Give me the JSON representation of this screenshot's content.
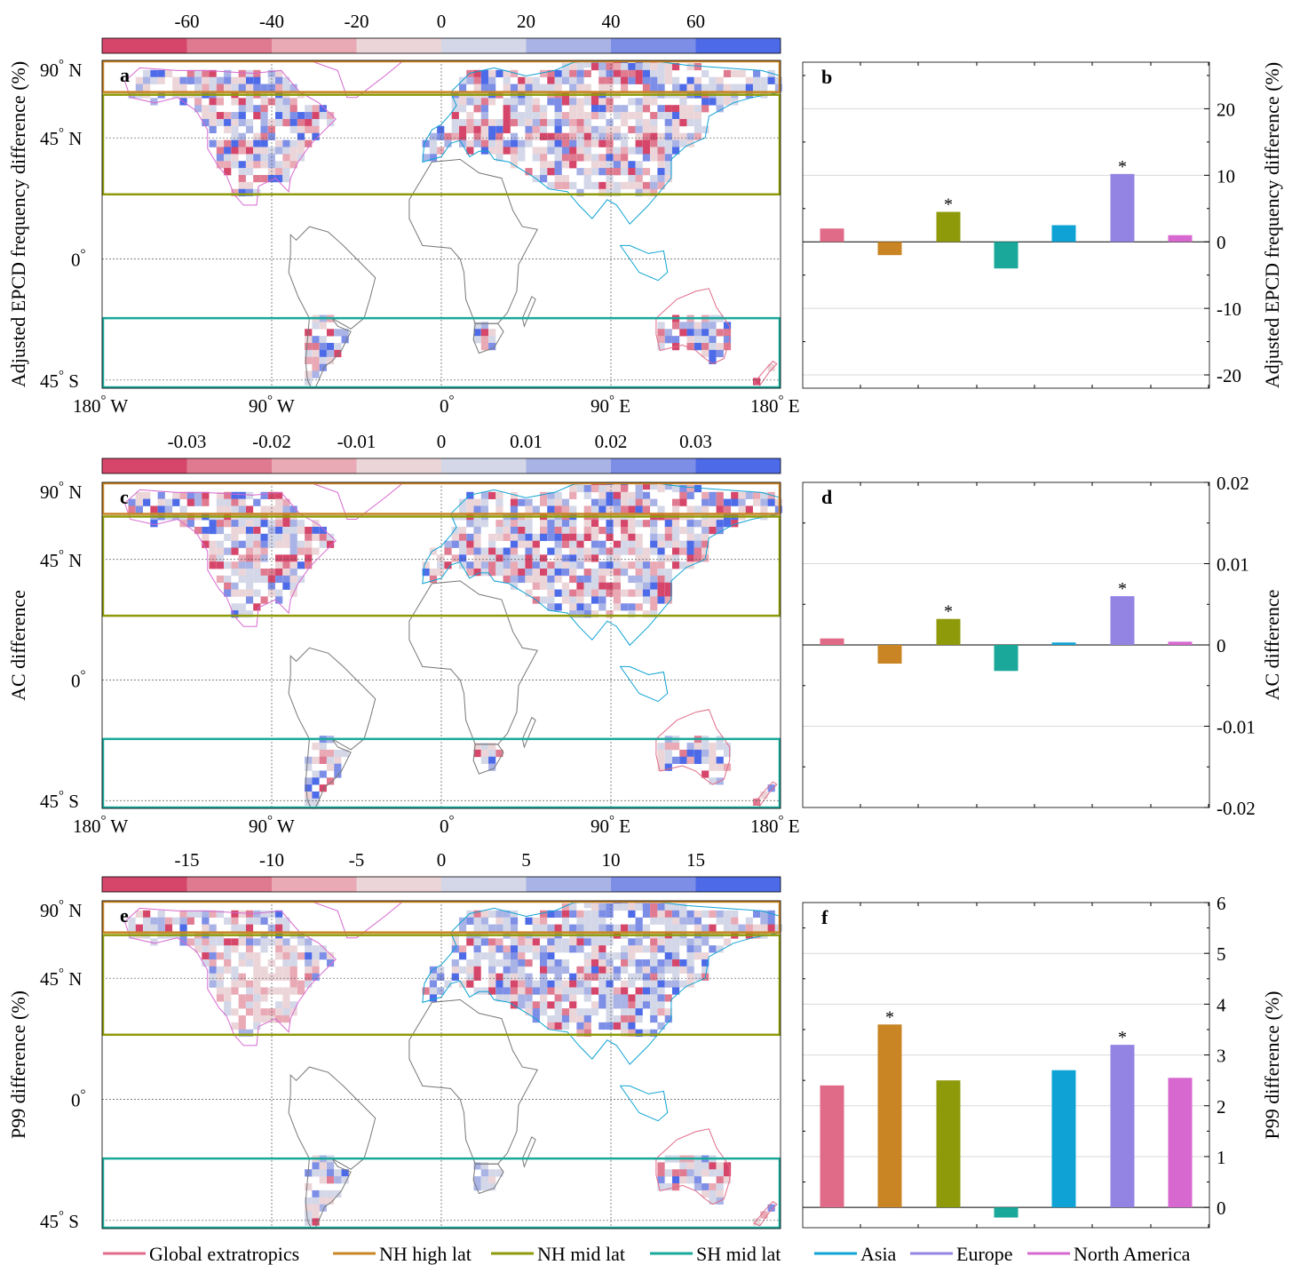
{
  "colors": {
    "Global extratropics": "#e06b88",
    "NH high lat": "#c98424",
    "NH mid lat": "#8e9a0a",
    "SH mid lat": "#1aa89a",
    "Asia": "#0ea3d4",
    "Europe": "#9384e3",
    "North America": "#d768d0",
    "coast_default": "#777777",
    "frame": "#000000"
  },
  "colorbar_colors": [
    "#d5466a",
    "#e07a90",
    "#e9a9b5",
    "#ecd5d8",
    "#d3d7e8",
    "#a9b3e6",
    "#7d8ee7",
    "#4d6be8"
  ],
  "map_axis": {
    "lat_labels": [
      "90° N",
      "45° N",
      "0°",
      "45° S"
    ],
    "lon_labels": [
      "180° W",
      "90° W",
      "0°",
      "90° E",
      "180° E"
    ]
  },
  "legend": {
    "items": [
      "Global extratropics",
      "NH high lat",
      "NH mid lat",
      "SH mid lat",
      "Asia",
      "Europe",
      "North America"
    ]
  },
  "chart_data": [
    {
      "panel": "a",
      "type": "heatmap",
      "colorbar_ticks": [
        "-60",
        "-40",
        "-20",
        "0",
        "20",
        "40",
        "60"
      ],
      "ylabel": "Adjusted EPCD frequency difference (%)",
      "region_boxes": [
        "NH high lat",
        "NH mid lat",
        "SH mid lat"
      ]
    },
    {
      "panel": "b",
      "type": "bar",
      "categories": [
        "Global extratropics",
        "NH high lat",
        "NH mid lat",
        "SH mid lat",
        "Asia",
        "Europe",
        "North America"
      ],
      "values": [
        2.0,
        -2.0,
        4.5,
        -4.0,
        2.5,
        10.2,
        1.0
      ],
      "significant": [
        false,
        false,
        true,
        false,
        false,
        true,
        false
      ],
      "ylim": [
        -22,
        27
      ],
      "yticks": [
        -20,
        -10,
        0,
        10,
        20
      ],
      "ylabel": "Adjusted EPCD frequency difference (%)"
    },
    {
      "panel": "c",
      "type": "heatmap",
      "colorbar_ticks": [
        "-0.03",
        "-0.02",
        "-0.01",
        "0",
        "0.01",
        "0.02",
        "0.03"
      ],
      "ylabel": "AC difference",
      "region_boxes": [
        "NH high lat",
        "NH mid lat",
        "SH mid lat"
      ]
    },
    {
      "panel": "d",
      "type": "bar",
      "categories": [
        "Global extratropics",
        "NH high lat",
        "NH mid lat",
        "SH mid lat",
        "Asia",
        "Europe",
        "North America"
      ],
      "values": [
        0.0008,
        -0.0023,
        0.0032,
        -0.0032,
        0.0003,
        0.006,
        0.0004
      ],
      "significant": [
        false,
        false,
        true,
        false,
        false,
        true,
        false
      ],
      "ylim": [
        -0.02,
        0.02
      ],
      "yticks": [
        -0.02,
        -0.01,
        0,
        0.01,
        0.02
      ],
      "yticklabels": [
        "-0.02",
        "-0.01",
        "0",
        "0.01",
        "0.02"
      ],
      "ylabel": "AC difference"
    },
    {
      "panel": "e",
      "type": "heatmap",
      "colorbar_ticks": [
        "-15",
        "-10",
        "-5",
        "0",
        "5",
        "10",
        "15"
      ],
      "ylabel": "P99 difference (%)",
      "region_boxes": [
        "NH high lat",
        "NH mid lat",
        "SH mid lat"
      ]
    },
    {
      "panel": "f",
      "type": "bar",
      "categories": [
        "Global extratropics",
        "NH high lat",
        "NH mid lat",
        "SH mid lat",
        "Asia",
        "Europe",
        "North America"
      ],
      "values": [
        2.4,
        3.6,
        2.5,
        -0.2,
        2.7,
        3.2,
        2.55
      ],
      "significant": [
        false,
        true,
        false,
        false,
        false,
        true,
        false
      ],
      "ylim": [
        -0.4,
        6
      ],
      "yticks": [
        0,
        1,
        2,
        3,
        4,
        5,
        6
      ],
      "ylabel": "P99 difference (%)"
    }
  ]
}
